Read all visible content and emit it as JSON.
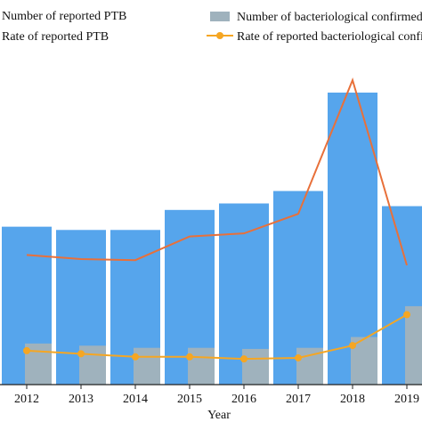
{
  "chart_data": {
    "type": "bar",
    "categories": [
      "2012",
      "2013",
      "2014",
      "2015",
      "2016",
      "2017",
      "2018",
      "2019"
    ],
    "xlabel": "Year",
    "series": [
      {
        "name": "Number of reported PTB",
        "kind": "bar",
        "color": "#56a5ec",
        "values": [
          292,
          286,
          286,
          323,
          335,
          358,
          540,
          330
        ]
      },
      {
        "name": "Number of bacteriological confirmed",
        "kind": "bar",
        "color": "#9fb2bd",
        "values": [
          76,
          72,
          68,
          68,
          66,
          68,
          88,
          145
        ]
      },
      {
        "name": "Rate of reported PTB",
        "kind": "line",
        "color": "#e8703a",
        "markers": false,
        "values": [
          63,
          61,
          60.5,
          72,
          73.5,
          83,
          148,
          58
        ]
      },
      {
        "name": "Rate of reported bacteriological confirmed",
        "kind": "line",
        "color": "#f5a623",
        "markers": true,
        "values": [
          16.5,
          15,
          13.5,
          13.5,
          12.5,
          13,
          19,
          34
        ]
      }
    ]
  }
}
